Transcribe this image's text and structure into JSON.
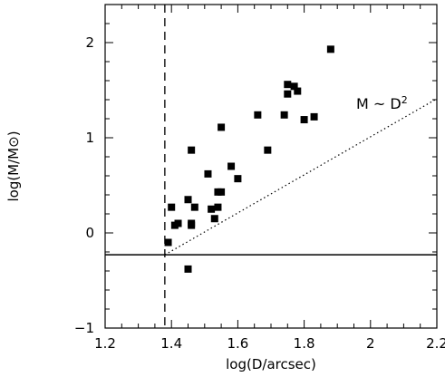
{
  "chart_data": {
    "type": "scatter",
    "title": "",
    "xlabel": "log(D/arcsec)",
    "ylabel": "log(M/M⊙)",
    "xlim": [
      1.2,
      2.2
    ],
    "ylim": [
      -1,
      2.4
    ],
    "x_ticks": [
      1.2,
      1.4,
      1.6,
      1.8,
      2.0,
      2.2
    ],
    "x_tick_labels": [
      "1.2",
      "1.4",
      "1.6",
      "1.8",
      "2",
      "2.2"
    ],
    "y_ticks": [
      -1,
      0,
      1,
      2
    ],
    "y_tick_labels": [
      "−1",
      "0",
      "1",
      "2"
    ],
    "grid": false,
    "legend": "none",
    "marker": "filled-square",
    "series": [
      {
        "points": [
          [
            1.39,
            -0.1
          ],
          [
            1.4,
            0.27
          ],
          [
            1.41,
            0.08
          ],
          [
            1.42,
            0.1
          ],
          [
            1.45,
            0.35
          ],
          [
            1.46,
            0.87
          ],
          [
            1.46,
            0.1
          ],
          [
            1.46,
            0.08
          ],
          [
            1.47,
            0.27
          ],
          [
            1.45,
            -0.38
          ],
          [
            1.51,
            0.62
          ],
          [
            1.52,
            0.25
          ],
          [
            1.53,
            0.15
          ],
          [
            1.54,
            0.27
          ],
          [
            1.54,
            0.43
          ],
          [
            1.55,
            0.43
          ],
          [
            1.55,
            1.11
          ],
          [
            1.58,
            0.7
          ],
          [
            1.6,
            0.57
          ],
          [
            1.66,
            1.24
          ],
          [
            1.69,
            0.87
          ],
          [
            1.74,
            1.24
          ],
          [
            1.75,
            1.56
          ],
          [
            1.75,
            1.46
          ],
          [
            1.77,
            1.54
          ],
          [
            1.78,
            1.49
          ],
          [
            1.8,
            1.19
          ],
          [
            1.83,
            1.22
          ],
          [
            1.88,
            1.93
          ]
        ]
      }
    ],
    "reference_lines": {
      "vertical_dashed_x": 1.38,
      "horizontal_solid_y": -0.23,
      "dotted_relation": {
        "x": [
          1.38,
          2.2
        ],
        "y": [
          -0.23,
          1.41
        ]
      }
    },
    "annotation": {
      "text": "M ~ D",
      "superscript": "2"
    }
  }
}
